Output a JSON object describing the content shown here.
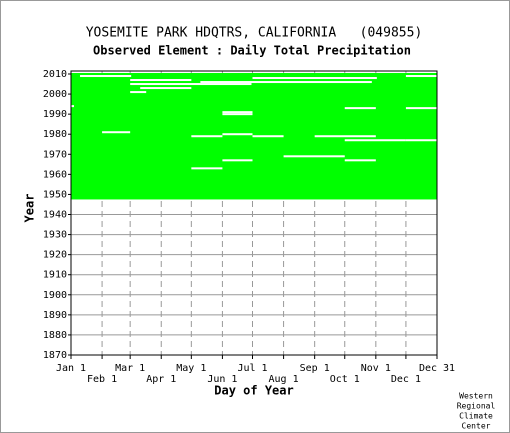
{
  "chart_data": {
    "type": "availability",
    "title": "YOSEMITE PARK HDQTRS, CALIFORNIA   (049855)",
    "subtitle": "Observed Element : Daily Total Precipitation",
    "xlabel": "Day of Year",
    "ylabel": "Year",
    "credit": [
      "Western",
      "Regional",
      "Climate",
      "Center"
    ],
    "color": "#00ff00",
    "grid": true,
    "xlim": [
      1,
      366
    ],
    "ylim": [
      1870,
      2011.5
    ],
    "xticks": [
      {
        "value": 1,
        "label": "Jan 1"
      },
      {
        "value": 32,
        "label": "Feb 1"
      },
      {
        "value": 60,
        "label": "Mar 1"
      },
      {
        "value": 91,
        "label": "Apr 1"
      },
      {
        "value": 121,
        "label": "May 1"
      },
      {
        "value": 152,
        "label": "Jun 1"
      },
      {
        "value": 182,
        "label": "Jul 1"
      },
      {
        "value": 213,
        "label": "Aug 1"
      },
      {
        "value": 244,
        "label": "Sep 1"
      },
      {
        "value": 274,
        "label": "Oct 1"
      },
      {
        "value": 305,
        "label": "Nov 1"
      },
      {
        "value": 335,
        "label": "Dec 1"
      },
      {
        "value": 366,
        "label": "Dec 31"
      }
    ],
    "yticks": [
      1870,
      1880,
      1890,
      1900,
      1910,
      1920,
      1930,
      1940,
      1950,
      1960,
      1970,
      1980,
      1990,
      2000,
      2010
    ],
    "data_years": [
      1948,
      2010
    ],
    "gaps": [
      {
        "year": 1981,
        "days": [
          32,
          59
        ]
      },
      {
        "year": 1990,
        "days": [
          152,
          181
        ]
      },
      {
        "year": 1991,
        "days": [
          152,
          181
        ]
      },
      {
        "year": 1979,
        "days": [
          121,
          151
        ]
      },
      {
        "year": 1980,
        "days": [
          152,
          181
        ]
      },
      {
        "year": 1979,
        "days": [
          182,
          212
        ]
      },
      {
        "year": 1979,
        "days": [
          244,
          304
        ]
      },
      {
        "year": 1977,
        "days": [
          274,
          334
        ]
      },
      {
        "year": 1977,
        "days": [
          335,
          366
        ]
      },
      {
        "year": 1969,
        "days": [
          213,
          273
        ]
      },
      {
        "year": 1967,
        "days": [
          152,
          181
        ]
      },
      {
        "year": 1967,
        "days": [
          274,
          304
        ]
      },
      {
        "year": 1963,
        "days": [
          121,
          151
        ]
      },
      {
        "year": 1993,
        "days": [
          274,
          304
        ]
      },
      {
        "year": 1993,
        "days": [
          335,
          366
        ]
      },
      {
        "year": 1994,
        "days": [
          1,
          3
        ]
      },
      {
        "year": 2001,
        "days": [
          60,
          75
        ]
      },
      {
        "year": 2003,
        "days": [
          70,
          120
        ]
      },
      {
        "year": 2005,
        "days": [
          60,
          180
        ]
      },
      {
        "year": 2006,
        "days": [
          130,
          300
        ]
      },
      {
        "year": 2007,
        "days": [
          60,
          120
        ]
      },
      {
        "year": 2008,
        "days": [
          182,
          305
        ]
      },
      {
        "year": 2009,
        "days": [
          10,
          60
        ]
      },
      {
        "year": 2009,
        "days": [
          335,
          366
        ]
      }
    ]
  }
}
